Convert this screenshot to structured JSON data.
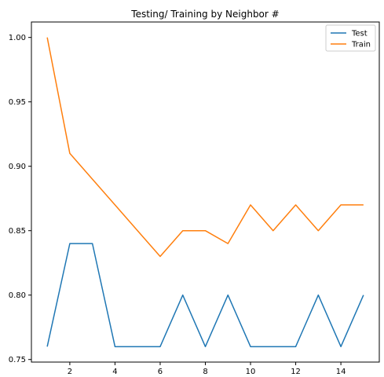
{
  "chart_data": {
    "type": "line",
    "title": "Testing/ Training by Neighbor #",
    "xlabel": "",
    "ylabel": "",
    "x": [
      1,
      2,
      3,
      4,
      5,
      6,
      7,
      8,
      9,
      10,
      11,
      12,
      13,
      14,
      15
    ],
    "xlim": [
      0.3,
      15.7
    ],
    "ylim": [
      0.748,
      1.012
    ],
    "xticks": [
      2,
      4,
      6,
      8,
      10,
      12,
      14
    ],
    "yticks": [
      0.75,
      0.8,
      0.85,
      0.9,
      0.95,
      1.0
    ],
    "ytick_labels": [
      "0.75",
      "0.80",
      "0.85",
      "0.90",
      "0.95",
      "1.00"
    ],
    "grid": false,
    "legend_position": "top-right",
    "series": [
      {
        "name": "Test",
        "color": "#1f77b4",
        "values": [
          0.76,
          0.84,
          0.84,
          0.76,
          0.76,
          0.76,
          0.8,
          0.76,
          0.8,
          0.76,
          0.76,
          0.76,
          0.8,
          0.76,
          0.8
        ]
      },
      {
        "name": "Train",
        "color": "#ff7f0e",
        "values": [
          1.0,
          0.91,
          0.89,
          0.87,
          0.85,
          0.83,
          0.85,
          0.85,
          0.84,
          0.87,
          0.85,
          0.87,
          0.85,
          0.87,
          0.87
        ]
      }
    ]
  }
}
